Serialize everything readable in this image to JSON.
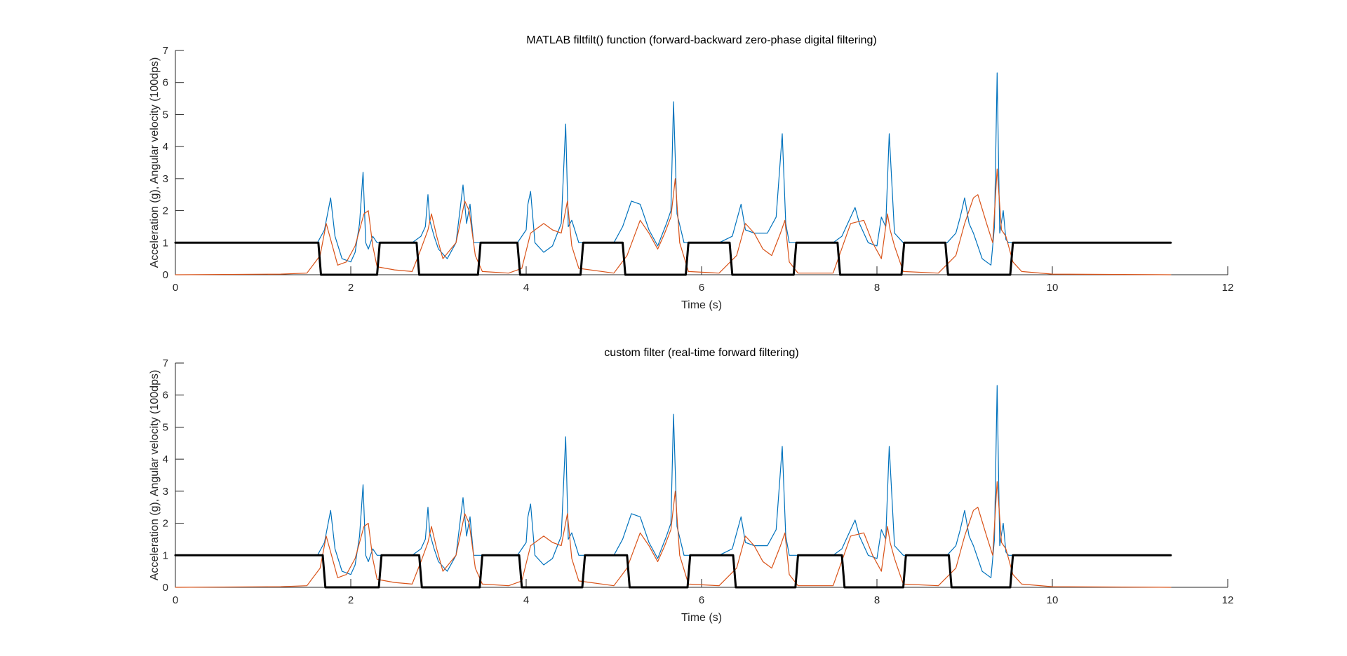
{
  "chart_data": [
    {
      "type": "line",
      "title": "MATLAB filtfilt() function (forward-backward zero-phase digital filtering)",
      "xlabel": "Time (s)",
      "ylabel": "Acceleration (g), Angular velocity (100dps)",
      "xlim": [
        0,
        12
      ],
      "ylim": [
        0,
        7
      ],
      "xticks": [
        0,
        2,
        4,
        6,
        8,
        10,
        12
      ],
      "yticks": [
        0,
        1,
        2,
        3,
        4,
        5,
        6,
        7
      ],
      "grid": false,
      "series": [
        {
          "color": "#0072BD",
          "stroke_width": 1.2,
          "x": [
            0,
            1.5,
            1.62,
            1.7,
            1.77,
            1.82,
            1.9,
            2.0,
            2.05,
            2.1,
            2.14,
            2.17,
            2.2,
            2.25,
            2.3,
            2.4,
            2.6,
            2.7,
            2.8,
            2.85,
            2.88,
            2.9,
            2.95,
            3.0,
            3.1,
            3.2,
            3.28,
            3.32,
            3.36,
            3.4,
            3.45,
            3.5,
            3.7,
            3.9,
            3.95,
            4.0,
            4.02,
            4.05,
            4.1,
            4.2,
            4.3,
            4.4,
            4.45,
            4.48,
            4.52,
            4.6,
            4.7,
            5.0,
            5.1,
            5.2,
            5.3,
            5.4,
            5.5,
            5.6,
            5.65,
            5.68,
            5.72,
            5.8,
            5.9,
            6.0,
            6.2,
            6.35,
            6.45,
            6.5,
            6.6,
            6.75,
            6.85,
            6.92,
            6.96,
            7.0,
            7.1,
            7.2,
            7.5,
            7.6,
            7.7,
            7.75,
            7.8,
            7.9,
            8.0,
            8.05,
            8.1,
            8.14,
            8.2,
            8.3,
            8.5,
            8.8,
            8.9,
            8.95,
            9.0,
            9.05,
            9.1,
            9.2,
            9.3,
            9.34,
            9.37,
            9.4,
            9.44,
            9.47,
            9.5,
            9.6,
            9.8,
            10.0,
            10.5,
            11.0,
            11.35
          ],
          "y": [
            1.0,
            1.0,
            1.0,
            1.4,
            2.4,
            1.2,
            0.5,
            0.4,
            0.7,
            1.6,
            3.2,
            1.0,
            0.8,
            1.2,
            1.0,
            1.0,
            1.0,
            1.0,
            1.2,
            1.5,
            2.5,
            1.7,
            1.2,
            0.8,
            0.5,
            1.0,
            2.8,
            1.6,
            2.2,
            1.0,
            1.0,
            1.0,
            1.0,
            1.0,
            1.2,
            1.4,
            2.2,
            2.6,
            1.0,
            0.7,
            0.9,
            1.6,
            4.7,
            1.5,
            1.7,
            1.0,
            1.0,
            1.0,
            1.5,
            2.3,
            2.2,
            1.4,
            0.9,
            1.6,
            2.0,
            5.4,
            1.9,
            1.0,
            1.0,
            1.0,
            1.0,
            1.2,
            2.2,
            1.4,
            1.3,
            1.3,
            1.8,
            4.4,
            1.6,
            1.0,
            1.0,
            1.0,
            1.0,
            1.2,
            1.8,
            2.1,
            1.6,
            1.0,
            0.9,
            1.8,
            1.5,
            4.4,
            1.3,
            1.0,
            1.0,
            1.0,
            1.3,
            1.8,
            2.4,
            1.6,
            1.3,
            0.5,
            0.3,
            1.5,
            6.3,
            1.3,
            2.0,
            1.1,
            1.0,
            1.0,
            1.0,
            1.0,
            1.0,
            1.0,
            1.0
          ]
        },
        {
          "color": "#D95319",
          "stroke_width": 1.2,
          "x": [
            0,
            1.2,
            1.5,
            1.65,
            1.72,
            1.77,
            1.85,
            1.95,
            2.05,
            2.15,
            2.2,
            2.25,
            2.3,
            2.5,
            2.7,
            2.8,
            2.88,
            2.92,
            2.98,
            3.05,
            3.2,
            3.3,
            3.35,
            3.42,
            3.5,
            3.8,
            3.95,
            4.05,
            4.2,
            4.3,
            4.4,
            4.47,
            4.52,
            4.6,
            5.0,
            5.15,
            5.3,
            5.4,
            5.5,
            5.58,
            5.65,
            5.7,
            5.75,
            5.85,
            6.2,
            6.4,
            6.5,
            6.6,
            6.7,
            6.8,
            6.9,
            6.95,
            7.0,
            7.1,
            7.5,
            7.7,
            7.85,
            7.95,
            8.05,
            8.12,
            8.15,
            8.2,
            8.3,
            8.7,
            8.9,
            9.0,
            9.1,
            9.15,
            9.25,
            9.32,
            9.37,
            9.42,
            9.47,
            9.55,
            9.65,
            10.0,
            11.35
          ],
          "y": [
            0.0,
            0.02,
            0.05,
            0.6,
            1.6,
            1.1,
            0.3,
            0.4,
            0.9,
            1.9,
            2.0,
            0.9,
            0.25,
            0.15,
            0.1,
            0.8,
            1.4,
            1.9,
            1.2,
            0.5,
            1.0,
            2.3,
            2.0,
            0.6,
            0.1,
            0.05,
            0.2,
            1.3,
            1.6,
            1.4,
            1.3,
            2.3,
            0.9,
            0.2,
            0.05,
            0.6,
            1.7,
            1.3,
            0.8,
            1.3,
            1.8,
            3.0,
            1.0,
            0.1,
            0.05,
            0.6,
            1.6,
            1.3,
            0.8,
            0.6,
            1.3,
            1.7,
            0.4,
            0.05,
            0.05,
            1.6,
            1.7,
            1.0,
            0.5,
            1.9,
            1.4,
            0.9,
            0.1,
            0.05,
            0.6,
            1.6,
            2.4,
            2.5,
            1.6,
            1.0,
            3.3,
            1.4,
            1.2,
            0.4,
            0.1,
            0.02,
            0.0
          ]
        },
        {
          "color": "#000000",
          "stroke_width": 3,
          "x": [
            0,
            1.63,
            1.66,
            2.3,
            2.33,
            2.75,
            2.78,
            3.45,
            3.48,
            3.9,
            3.93,
            4.62,
            4.65,
            5.1,
            5.13,
            5.82,
            5.85,
            6.32,
            6.35,
            7.05,
            7.08,
            7.55,
            7.58,
            8.28,
            8.31,
            8.78,
            8.81,
            9.52,
            9.55,
            11.35
          ],
          "y": [
            1,
            1,
            0,
            0,
            1,
            1,
            0,
            0,
            1,
            1,
            0,
            0,
            1,
            1,
            0,
            0,
            1,
            1,
            0,
            0,
            1,
            1,
            0,
            0,
            1,
            1,
            0,
            0,
            1,
            1
          ]
        }
      ]
    },
    {
      "type": "line",
      "title": "custom filter (real-time forward filtering)",
      "xlabel": "Time (s)",
      "ylabel": "Acceleration (g), Angular velocity (100dps)",
      "xlim": [
        0,
        12
      ],
      "ylim": [
        0,
        7
      ],
      "xticks": [
        0,
        2,
        4,
        6,
        8,
        10,
        12
      ],
      "yticks": [
        0,
        1,
        2,
        3,
        4,
        5,
        6,
        7
      ],
      "grid": false,
      "series": [
        {
          "color": "#0072BD",
          "stroke_width": 1.2,
          "x": [
            0,
            1.5,
            1.62,
            1.7,
            1.77,
            1.82,
            1.9,
            2.0,
            2.05,
            2.1,
            2.14,
            2.17,
            2.2,
            2.25,
            2.3,
            2.4,
            2.6,
            2.7,
            2.8,
            2.85,
            2.88,
            2.9,
            2.95,
            3.0,
            3.1,
            3.2,
            3.28,
            3.32,
            3.36,
            3.4,
            3.45,
            3.5,
            3.7,
            3.9,
            3.95,
            4.0,
            4.02,
            4.05,
            4.1,
            4.2,
            4.3,
            4.4,
            4.45,
            4.48,
            4.52,
            4.6,
            4.7,
            5.0,
            5.1,
            5.2,
            5.3,
            5.4,
            5.5,
            5.6,
            5.65,
            5.68,
            5.72,
            5.8,
            5.9,
            6.0,
            6.2,
            6.35,
            6.45,
            6.5,
            6.6,
            6.75,
            6.85,
            6.92,
            6.96,
            7.0,
            7.1,
            7.2,
            7.5,
            7.6,
            7.7,
            7.75,
            7.8,
            7.9,
            8.0,
            8.05,
            8.1,
            8.14,
            8.2,
            8.3,
            8.5,
            8.8,
            8.9,
            8.95,
            9.0,
            9.05,
            9.1,
            9.2,
            9.3,
            9.34,
            9.37,
            9.4,
            9.44,
            9.47,
            9.5,
            9.6,
            9.8,
            10.0,
            10.5,
            11.0,
            11.35
          ],
          "y": [
            1.0,
            1.0,
            1.0,
            1.4,
            2.4,
            1.2,
            0.5,
            0.4,
            0.7,
            1.6,
            3.2,
            1.0,
            0.8,
            1.2,
            1.0,
            1.0,
            1.0,
            1.0,
            1.2,
            1.5,
            2.5,
            1.7,
            1.2,
            0.8,
            0.5,
            1.0,
            2.8,
            1.6,
            2.2,
            1.0,
            1.0,
            1.0,
            1.0,
            1.0,
            1.2,
            1.4,
            2.2,
            2.6,
            1.0,
            0.7,
            0.9,
            1.6,
            4.7,
            1.5,
            1.7,
            1.0,
            1.0,
            1.0,
            1.5,
            2.3,
            2.2,
            1.4,
            0.9,
            1.6,
            2.0,
            5.4,
            1.9,
            1.0,
            1.0,
            1.0,
            1.0,
            1.2,
            2.2,
            1.4,
            1.3,
            1.3,
            1.8,
            4.4,
            1.6,
            1.0,
            1.0,
            1.0,
            1.0,
            1.2,
            1.8,
            2.1,
            1.6,
            1.0,
            0.9,
            1.8,
            1.5,
            4.4,
            1.3,
            1.0,
            1.0,
            1.0,
            1.3,
            1.8,
            2.4,
            1.6,
            1.3,
            0.5,
            0.3,
            1.5,
            6.3,
            1.3,
            2.0,
            1.1,
            1.0,
            1.0,
            1.0,
            1.0,
            1.0,
            1.0,
            1.0
          ]
        },
        {
          "color": "#D95319",
          "stroke_width": 1.2,
          "x": [
            0,
            1.2,
            1.5,
            1.65,
            1.72,
            1.77,
            1.85,
            1.95,
            2.05,
            2.15,
            2.2,
            2.25,
            2.3,
            2.5,
            2.7,
            2.8,
            2.88,
            2.92,
            2.98,
            3.05,
            3.2,
            3.3,
            3.35,
            3.42,
            3.5,
            3.8,
            3.95,
            4.05,
            4.2,
            4.3,
            4.4,
            4.47,
            4.52,
            4.6,
            5.0,
            5.15,
            5.3,
            5.4,
            5.5,
            5.58,
            5.65,
            5.7,
            5.75,
            5.85,
            6.2,
            6.4,
            6.5,
            6.6,
            6.7,
            6.8,
            6.9,
            6.95,
            7.0,
            7.1,
            7.5,
            7.7,
            7.85,
            7.95,
            8.05,
            8.12,
            8.15,
            8.2,
            8.3,
            8.7,
            8.9,
            9.0,
            9.1,
            9.15,
            9.25,
            9.32,
            9.37,
            9.42,
            9.47,
            9.55,
            9.65,
            10.0,
            11.35
          ],
          "y": [
            0.0,
            0.02,
            0.05,
            0.6,
            1.6,
            1.1,
            0.3,
            0.4,
            0.9,
            1.9,
            2.0,
            0.9,
            0.25,
            0.15,
            0.1,
            0.8,
            1.4,
            1.9,
            1.2,
            0.5,
            1.0,
            2.3,
            2.0,
            0.6,
            0.1,
            0.05,
            0.2,
            1.3,
            1.6,
            1.4,
            1.3,
            2.3,
            0.9,
            0.2,
            0.05,
            0.6,
            1.7,
            1.3,
            0.8,
            1.3,
            1.8,
            3.0,
            1.0,
            0.1,
            0.05,
            0.6,
            1.6,
            1.3,
            0.8,
            0.6,
            1.3,
            1.7,
            0.4,
            0.05,
            0.05,
            1.6,
            1.7,
            1.0,
            0.5,
            1.9,
            1.4,
            0.9,
            0.1,
            0.05,
            0.6,
            1.6,
            2.4,
            2.5,
            1.6,
            1.0,
            3.3,
            1.4,
            1.2,
            0.4,
            0.1,
            0.02,
            0.0
          ]
        },
        {
          "color": "#000000",
          "stroke_width": 3,
          "x": [
            0,
            1.68,
            1.71,
            2.32,
            2.35,
            2.78,
            2.81,
            3.47,
            3.5,
            3.92,
            3.95,
            4.64,
            4.67,
            5.15,
            5.18,
            5.84,
            5.87,
            6.36,
            6.39,
            7.07,
            7.1,
            7.6,
            7.63,
            8.3,
            8.33,
            8.82,
            8.85,
            9.52,
            9.55,
            11.35
          ],
          "y": [
            1,
            1,
            0,
            0,
            1,
            1,
            0,
            0,
            1,
            1,
            0,
            0,
            1,
            1,
            0,
            0,
            1,
            1,
            0,
            0,
            1,
            1,
            0,
            0,
            1,
            1,
            0,
            0,
            1,
            1
          ]
        }
      ]
    }
  ]
}
